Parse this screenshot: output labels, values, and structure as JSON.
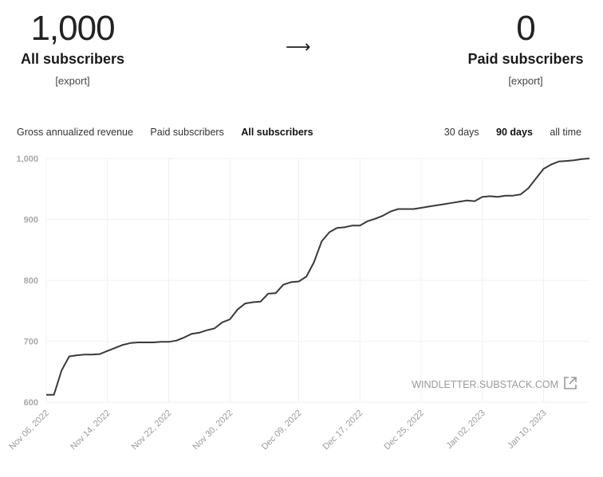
{
  "summary": {
    "left": {
      "value": "1,000",
      "label": "All subscribers",
      "export_label": "[export]"
    },
    "arrow": "⟶",
    "right": {
      "value": "0",
      "label": "Paid subscribers",
      "export_label": "[export]"
    }
  },
  "metric_tabs": [
    {
      "label": "Gross annualized revenue",
      "active": false
    },
    {
      "label": "Paid subscribers",
      "active": false
    },
    {
      "label": "All subscribers",
      "active": true
    }
  ],
  "range_tabs": [
    {
      "label": "30 days",
      "active": false
    },
    {
      "label": "90 days",
      "active": true
    },
    {
      "label": "all time",
      "active": false
    }
  ],
  "watermark": {
    "text": "WINDLETTER.SUBSTACK.COM",
    "icon": "external-link-icon"
  },
  "colors": {
    "line": "#3a3a3a",
    "grid": "#f0f0f0"
  },
  "chart_data": {
    "type": "line",
    "x_tick_labels": [
      "Nov 06, 2022",
      "Nov 14, 2022",
      "Nov 22, 2022",
      "Nov 30, 2022",
      "Dec 09, 2022",
      "Dec 17, 2022",
      "Dec 25, 2022",
      "Jan 02, 2023",
      "Jan 10, 2023"
    ],
    "y_ticks": [
      600,
      700,
      800,
      900,
      1000
    ],
    "y_tick_labels": [
      "600",
      "700",
      "800",
      "900",
      "1,000"
    ],
    "ylim": [
      600,
      1000
    ],
    "x": [
      "2022-11-06",
      "2022-11-07",
      "2022-11-08",
      "2022-11-09",
      "2022-11-10",
      "2022-11-11",
      "2022-11-12",
      "2022-11-13",
      "2022-11-14",
      "2022-11-15",
      "2022-11-16",
      "2022-11-17",
      "2022-11-18",
      "2022-11-19",
      "2022-11-20",
      "2022-11-21",
      "2022-11-22",
      "2022-11-23",
      "2022-11-24",
      "2022-11-25",
      "2022-11-26",
      "2022-11-27",
      "2022-11-28",
      "2022-11-29",
      "2022-11-30",
      "2022-12-01",
      "2022-12-02",
      "2022-12-03",
      "2022-12-04",
      "2022-12-05",
      "2022-12-06",
      "2022-12-07",
      "2022-12-08",
      "2022-12-09",
      "2022-12-10",
      "2022-12-11",
      "2022-12-12",
      "2022-12-13",
      "2022-12-14",
      "2022-12-15",
      "2022-12-16",
      "2022-12-17",
      "2022-12-18",
      "2022-12-19",
      "2022-12-20",
      "2022-12-21",
      "2022-12-22",
      "2022-12-23",
      "2022-12-24",
      "2022-12-25",
      "2022-12-26",
      "2022-12-27",
      "2022-12-28",
      "2022-12-29",
      "2022-12-30",
      "2022-12-31",
      "2023-01-01",
      "2023-01-02",
      "2023-01-03",
      "2023-01-04",
      "2023-01-05",
      "2023-01-06",
      "2023-01-07",
      "2023-01-08",
      "2023-01-09",
      "2023-01-10",
      "2023-01-11",
      "2023-01-12",
      "2023-01-13",
      "2023-01-14",
      "2023-01-15",
      "2023-01-16"
    ],
    "series": [
      {
        "values": [
          612,
          612,
          652,
          675,
          677,
          678,
          678,
          679,
          684,
          689,
          694,
          697,
          698,
          698,
          698,
          699,
          699,
          701,
          706,
          712,
          714,
          718,
          721,
          731,
          736,
          752,
          762,
          764,
          765,
          778,
          779,
          793,
          797,
          798,
          806,
          830,
          864,
          879,
          886,
          887,
          890,
          890,
          897,
          901,
          906,
          913,
          917,
          917,
          917,
          919,
          921,
          923,
          925,
          927,
          929,
          931,
          930,
          937,
          938,
          937,
          939,
          939,
          941,
          951,
          967,
          983,
          990,
          995,
          996,
          997,
          999,
          1000
        ]
      }
    ]
  }
}
